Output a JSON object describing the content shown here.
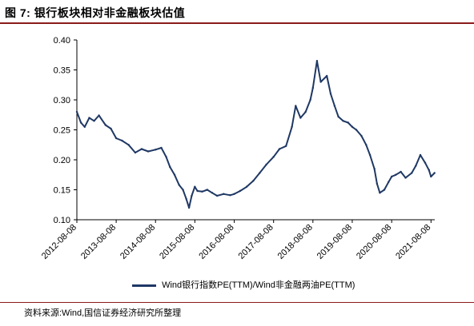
{
  "figure": {
    "title": "图 7:   银行板块相对非金融板块估值",
    "source": "资料来源:Wind,国信证券经济研究所整理"
  },
  "chart_data": {
    "type": "line",
    "title": "",
    "xlabel": "",
    "ylabel": "",
    "ylim": [
      0.1,
      0.4
    ],
    "yticks": [
      "0.10",
      "0.15",
      "0.20",
      "0.25",
      "0.30",
      "0.35",
      "0.40"
    ],
    "xticks": [
      "2012-08-08",
      "2013-08-08",
      "2014-08-08",
      "2015-08-08",
      "2016-08-08",
      "2017-08-08",
      "2018-08-08",
      "2019-08-08",
      "2020-08-08",
      "2021-08-08"
    ],
    "grid": false,
    "legend_position": "bottom",
    "color": "#1f3864",
    "series": [
      {
        "name": "Wind银行指数PE(TTM)/Wind非金融两油PE(TTM)",
        "x": [
          "2012-08-08",
          "2012-09-15",
          "2012-10-20",
          "2012-12-01",
          "2013-01-15",
          "2013-03-01",
          "2013-05-01",
          "2013-06-20",
          "2013-08-08",
          "2013-10-01",
          "2013-12-01",
          "2014-02-01",
          "2014-04-01",
          "2014-06-01",
          "2014-08-08",
          "2014-10-01",
          "2014-11-15",
          "2014-12-20",
          "2015-02-01",
          "2015-03-15",
          "2015-04-20",
          "2015-05-20",
          "2015-06-15",
          "2015-07-10",
          "2015-08-08",
          "2015-09-01",
          "2015-10-15",
          "2015-12-01",
          "2016-01-15",
          "2016-03-01",
          "2016-05-01",
          "2016-07-01",
          "2016-08-08",
          "2016-10-01",
          "2016-12-01",
          "2017-02-01",
          "2017-04-01",
          "2017-06-01",
          "2017-08-08",
          "2017-10-01",
          "2017-12-01",
          "2018-01-25",
          "2018-03-01",
          "2018-04-15",
          "2018-06-01",
          "2018-07-15",
          "2018-08-08",
          "2018-09-15",
          "2018-10-20",
          "2018-12-15",
          "2019-01-20",
          "2019-02-25",
          "2019-04-01",
          "2019-05-15",
          "2019-07-01",
          "2019-08-08",
          "2019-09-15",
          "2019-11-01",
          "2019-12-15",
          "2020-01-20",
          "2020-03-01",
          "2020-03-25",
          "2020-04-20",
          "2020-06-01",
          "2020-07-10",
          "2020-08-08",
          "2020-09-15",
          "2020-11-01",
          "2020-12-15",
          "2021-02-10",
          "2021-03-20",
          "2021-05-01",
          "2021-06-15",
          "2021-07-20",
          "2021-08-08",
          "2021-09-10"
        ],
        "values": [
          0.28,
          0.262,
          0.255,
          0.27,
          0.265,
          0.274,
          0.258,
          0.252,
          0.236,
          0.232,
          0.225,
          0.212,
          0.218,
          0.214,
          0.217,
          0.22,
          0.205,
          0.188,
          0.175,
          0.158,
          0.15,
          0.135,
          0.12,
          0.14,
          0.155,
          0.148,
          0.147,
          0.15,
          0.145,
          0.14,
          0.143,
          0.141,
          0.143,
          0.148,
          0.155,
          0.165,
          0.178,
          0.192,
          0.205,
          0.218,
          0.223,
          0.255,
          0.29,
          0.27,
          0.28,
          0.3,
          0.32,
          0.365,
          0.33,
          0.34,
          0.31,
          0.29,
          0.272,
          0.265,
          0.262,
          0.255,
          0.25,
          0.24,
          0.225,
          0.208,
          0.185,
          0.16,
          0.145,
          0.15,
          0.163,
          0.172,
          0.175,
          0.18,
          0.17,
          0.178,
          0.19,
          0.208,
          0.195,
          0.183,
          0.172,
          0.178
        ]
      }
    ]
  }
}
